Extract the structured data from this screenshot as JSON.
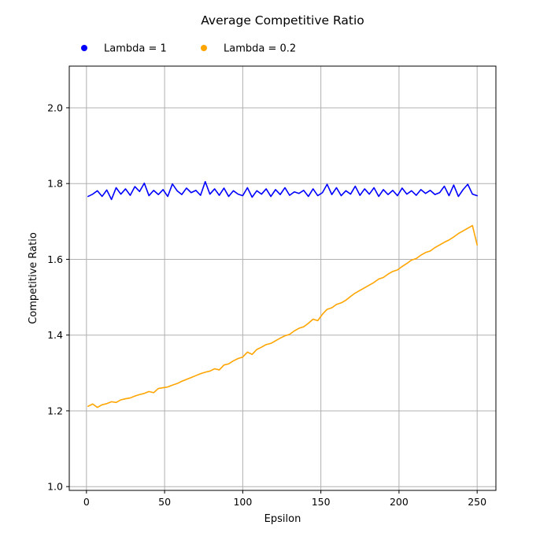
{
  "chart_data": {
    "type": "line",
    "title": "Average Competitive Ratio",
    "xlabel": "Epsilon",
    "ylabel": "Competitive Ratio",
    "xlim": [
      -11,
      262
    ],
    "ylim": [
      0.99,
      2.11
    ],
    "xticks": [
      0,
      50,
      100,
      150,
      200,
      250
    ],
    "yticks": [
      1.0,
      1.2,
      1.4,
      1.6,
      1.8,
      2.0
    ],
    "xtick_labels": [
      "0",
      "50",
      "100",
      "150",
      "200",
      "250"
    ],
    "ytick_labels": [
      "1.0",
      "1.2",
      "1.4",
      "1.6",
      "1.8",
      "2.0"
    ],
    "grid": true,
    "legend_position": "top",
    "x": [
      1,
      4,
      7,
      10,
      13,
      16,
      19,
      22,
      25,
      28,
      31,
      34,
      37,
      40,
      43,
      46,
      49,
      52,
      55,
      58,
      61,
      64,
      67,
      70,
      73,
      76,
      79,
      82,
      85,
      88,
      91,
      94,
      97,
      100,
      103,
      106,
      109,
      112,
      115,
      118,
      121,
      124,
      127,
      130,
      133,
      136,
      139,
      142,
      145,
      148,
      151,
      154,
      157,
      160,
      163,
      166,
      169,
      172,
      175,
      178,
      181,
      184,
      187,
      190,
      193,
      196,
      199,
      202,
      205,
      208,
      211,
      214,
      217,
      220,
      223,
      226,
      229,
      232,
      235,
      238,
      241,
      244,
      247,
      250
    ],
    "series": [
      {
        "name": "Lambda = 1",
        "color": "#0000ff",
        "values": [
          1.766,
          1.772,
          1.781,
          1.766,
          1.783,
          1.758,
          1.789,
          1.772,
          1.786,
          1.769,
          1.792,
          1.779,
          1.801,
          1.768,
          1.782,
          1.771,
          1.784,
          1.766,
          1.799,
          1.781,
          1.771,
          1.788,
          1.776,
          1.782,
          1.769,
          1.805,
          1.772,
          1.786,
          1.769,
          1.788,
          1.766,
          1.781,
          1.772,
          1.768,
          1.789,
          1.764,
          1.781,
          1.772,
          1.786,
          1.766,
          1.784,
          1.771,
          1.789,
          1.769,
          1.778,
          1.774,
          1.782,
          1.766,
          1.786,
          1.768,
          1.776,
          1.798,
          1.771,
          1.789,
          1.768,
          1.781,
          1.772,
          1.793,
          1.769,
          1.786,
          1.772,
          1.789,
          1.766,
          1.784,
          1.771,
          1.782,
          1.768,
          1.788,
          1.772,
          1.781,
          1.769,
          1.784,
          1.774,
          1.782,
          1.771,
          1.776,
          1.793,
          1.768,
          1.796,
          1.766,
          1.784,
          1.798,
          1.772,
          1.768
        ]
      },
      {
        "name": "Lambda = 0.2",
        "color": "#ffa500",
        "values": [
          1.212,
          1.218,
          1.209,
          1.216,
          1.219,
          1.224,
          1.222,
          1.229,
          1.232,
          1.234,
          1.239,
          1.243,
          1.246,
          1.251,
          1.248,
          1.259,
          1.261,
          1.263,
          1.268,
          1.272,
          1.278,
          1.283,
          1.288,
          1.293,
          1.298,
          1.302,
          1.305,
          1.311,
          1.308,
          1.321,
          1.324,
          1.332,
          1.338,
          1.342,
          1.355,
          1.349,
          1.362,
          1.368,
          1.375,
          1.378,
          1.385,
          1.392,
          1.398,
          1.402,
          1.411,
          1.418,
          1.422,
          1.431,
          1.442,
          1.438,
          1.455,
          1.468,
          1.472,
          1.481,
          1.485,
          1.492,
          1.502,
          1.511,
          1.518,
          1.525,
          1.532,
          1.539,
          1.548,
          1.552,
          1.561,
          1.568,
          1.572,
          1.581,
          1.589,
          1.598,
          1.602,
          1.611,
          1.618,
          1.622,
          1.631,
          1.638,
          1.645,
          1.651,
          1.659,
          1.668,
          1.675,
          1.682,
          1.689,
          1.638
        ]
      }
    ]
  }
}
